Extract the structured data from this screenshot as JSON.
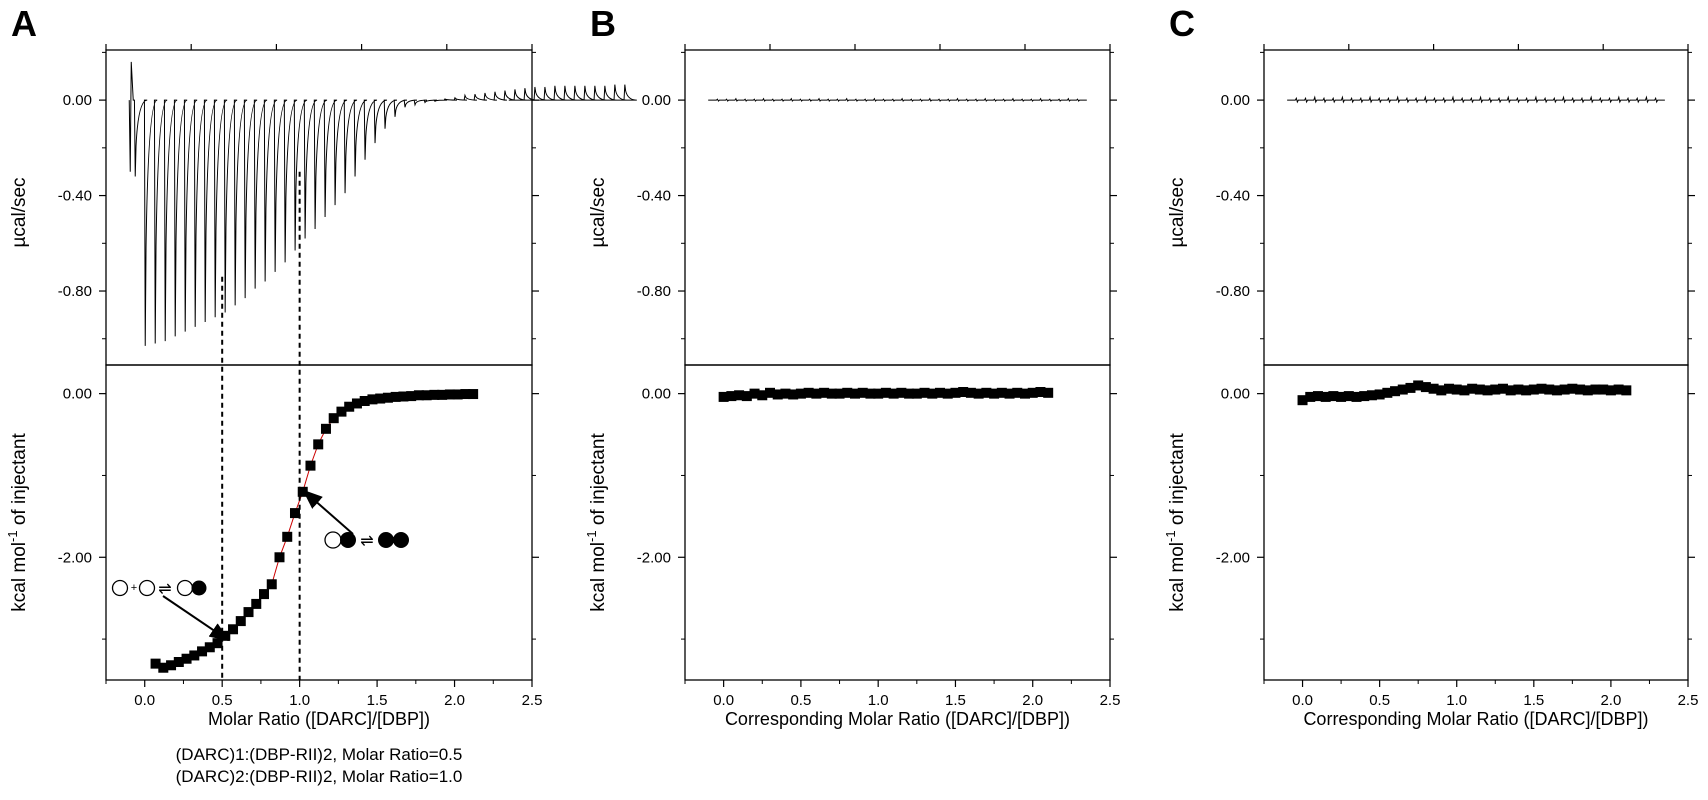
{
  "chart_data": [
    {
      "panel_label": "A",
      "type": "line",
      "top": {
        "ylabel": "µcal/sec",
        "ytick_labels": [
          "0.00",
          "-0.40",
          "-0.80"
        ],
        "ylim": [
          -1.11,
          0.21
        ],
        "series": [
          {
            "x_start": -0.1,
            "x_step": 0.0645,
            "count": 28,
            "peak_values": [
              -0.32,
              -1.03,
              -1.02,
              -1.01,
              -0.99,
              -0.97,
              -0.95,
              -0.93,
              -0.91,
              -0.89,
              -0.86,
              -0.83,
              -0.79,
              -0.76,
              -0.72,
              -0.68,
              -0.63,
              -0.58,
              -0.54,
              -0.49,
              -0.44,
              -0.39,
              -0.32,
              -0.25,
              -0.18,
              -0.12,
              -0.07,
              -0.03
            ],
            "tail_peak_values": [
              -0.02,
              -0.01,
              -0.005,
              0.005,
              0.01,
              0.02,
              0.025,
              0.03,
              0.035,
              0.04,
              0.045,
              0.05,
              0.055,
              0.055,
              0.06,
              0.06,
              0.06,
              0.06,
              0.06,
              0.06,
              0.065,
              0.065
            ],
            "initial_spike": 0.16,
            "x_end": 2.35
          }
        ]
      },
      "bottom": {
        "type": "scatter",
        "ylabel": "kcal mol-1 of injectant",
        "ylabel_parts": [
          "kcal mol",
          "-1",
          " of injectant"
        ],
        "ytick_labels": [
          "0.00",
          "-2.00"
        ],
        "ylim": [
          -3.5,
          0.35
        ],
        "xlabel": "Molar Ratio ([DARC]/[DBP])",
        "xtick_labels": [
          "0.0",
          "0.5",
          "1.0",
          "1.5",
          "2.0",
          "2.5"
        ],
        "xlim": [
          -0.25,
          2.5
        ],
        "series": [
          {
            "points": [
              [
                0.07,
                -3.3
              ],
              [
                0.12,
                -3.35
              ],
              [
                0.17,
                -3.32
              ],
              [
                0.22,
                -3.28
              ],
              [
                0.27,
                -3.24
              ],
              [
                0.32,
                -3.2
              ],
              [
                0.37,
                -3.15
              ],
              [
                0.42,
                -3.1
              ],
              [
                0.47,
                -3.05
              ],
              [
                0.52,
                -2.96
              ],
              [
                0.57,
                -2.88
              ],
              [
                0.62,
                -2.78
              ],
              [
                0.67,
                -2.67
              ],
              [
                0.72,
                -2.57
              ],
              [
                0.77,
                -2.45
              ],
              [
                0.82,
                -2.33
              ],
              [
                0.87,
                -2.0
              ],
              [
                0.92,
                -1.75
              ],
              [
                0.97,
                -1.46
              ],
              [
                1.02,
                -1.2
              ],
              [
                1.07,
                -0.88
              ],
              [
                1.12,
                -0.62
              ],
              [
                1.17,
                -0.43
              ],
              [
                1.22,
                -0.3
              ],
              [
                1.27,
                -0.22
              ],
              [
                1.32,
                -0.16
              ],
              [
                1.37,
                -0.12
              ],
              [
                1.42,
                -0.09
              ],
              [
                1.47,
                -0.07
              ],
              [
                1.52,
                -0.06
              ],
              [
                1.57,
                -0.05
              ],
              [
                1.62,
                -0.04
              ],
              [
                1.67,
                -0.035
              ],
              [
                1.72,
                -0.03
              ],
              [
                1.77,
                -0.02
              ],
              [
                1.82,
                -0.02
              ],
              [
                1.87,
                -0.015
              ],
              [
                1.92,
                -0.015
              ],
              [
                1.97,
                -0.01
              ],
              [
                2.02,
                -0.01
              ],
              [
                2.07,
                -0.005
              ],
              [
                2.12,
                -0.005
              ]
            ]
          }
        ],
        "fit_color": "#cc0000"
      },
      "reference_lines_x": [
        0.5,
        1.0
      ],
      "annotations": {
        "eq1": [
          "+",
          "⇌"
        ],
        "eq2": [
          "⇌"
        ]
      },
      "captions": [
        "(DARC)1:(DBP-RII)2, Molar Ratio=0.5",
        "(DARC)2:(DBP-RII)2, Molar Ratio=1.0"
      ]
    },
    {
      "panel_label": "B",
      "type": "line",
      "top": {
        "ylabel": "µcal/sec",
        "ytick_labels": [
          "0.00",
          "-0.40",
          "-0.80"
        ],
        "ylim": [
          -1.11,
          0.21
        ],
        "series": [
          {
            "flat": true,
            "noise": 0.004,
            "x_start": -0.1,
            "x_end": 2.35
          }
        ]
      },
      "bottom": {
        "type": "scatter",
        "ylabel": "kcal mol-1 of injectant",
        "ylabel_parts": [
          "kcal mol",
          "-1",
          " of injectant"
        ],
        "ytick_labels": [
          "0.00",
          "-2.00"
        ],
        "ylim": [
          -3.5,
          0.35
        ],
        "xlabel": "Corresponding Molar Ratio ([DARC]/[DBP])",
        "xtick_labels": [
          "0.0",
          "0.5",
          "1.0",
          "1.5",
          "2.0",
          "2.5"
        ],
        "xlim": [
          -0.25,
          2.5
        ],
        "series": [
          {
            "points": [
              [
                0.0,
                -0.04
              ],
              [
                0.05,
                -0.03
              ],
              [
                0.1,
                -0.02
              ],
              [
                0.15,
                -0.03
              ],
              [
                0.2,
                0.0
              ],
              [
                0.25,
                -0.02
              ],
              [
                0.3,
                0.01
              ],
              [
                0.35,
                -0.01
              ],
              [
                0.4,
                0.0
              ],
              [
                0.45,
                -0.01
              ],
              [
                0.5,
                0.0
              ],
              [
                0.55,
                0.01
              ],
              [
                0.6,
                0.0
              ],
              [
                0.65,
                0.01
              ],
              [
                0.7,
                0.0
              ],
              [
                0.75,
                0.0
              ],
              [
                0.8,
                0.01
              ],
              [
                0.85,
                0.0
              ],
              [
                0.9,
                0.01
              ],
              [
                0.95,
                0.0
              ],
              [
                1.0,
                0.0
              ],
              [
                1.05,
                0.01
              ],
              [
                1.1,
                0.0
              ],
              [
                1.15,
                0.01
              ],
              [
                1.2,
                0.0
              ],
              [
                1.25,
                0.0
              ],
              [
                1.3,
                0.01
              ],
              [
                1.35,
                0.0
              ],
              [
                1.4,
                0.01
              ],
              [
                1.45,
                0.0
              ],
              [
                1.5,
                0.01
              ],
              [
                1.55,
                0.02
              ],
              [
                1.6,
                0.01
              ],
              [
                1.65,
                0.0
              ],
              [
                1.7,
                0.01
              ],
              [
                1.75,
                0.0
              ],
              [
                1.8,
                0.01
              ],
              [
                1.85,
                0.0
              ],
              [
                1.9,
                0.01
              ],
              [
                1.95,
                0.0
              ],
              [
                2.0,
                0.01
              ],
              [
                2.05,
                0.02
              ],
              [
                2.1,
                0.01
              ]
            ]
          }
        ]
      }
    },
    {
      "panel_label": "C",
      "type": "line",
      "top": {
        "ylabel": "µcal/sec",
        "ytick_labels": [
          "0.00",
          "-0.40",
          "-0.80"
        ],
        "ylim": [
          -1.11,
          0.21
        ],
        "series": [
          {
            "flat": true,
            "noise": 0.008,
            "x_start": -0.1,
            "x_end": 2.35
          }
        ]
      },
      "bottom": {
        "type": "scatter",
        "ylabel": "kcal mol-1 of injectant",
        "ylabel_parts": [
          "kcal mol",
          "-1",
          " of injectant"
        ],
        "ytick_labels": [
          "0.00",
          "-2.00"
        ],
        "ylim": [
          -3.5,
          0.35
        ],
        "xlabel": "Corresponding Molar Ratio ([DARC]/[DBP])",
        "xtick_labels": [
          "0.0",
          "0.5",
          "1.0",
          "1.5",
          "2.0",
          "2.5"
        ],
        "xlim": [
          -0.25,
          2.5
        ],
        "series": [
          {
            "points": [
              [
                0.0,
                -0.08
              ],
              [
                0.05,
                -0.04
              ],
              [
                0.1,
                -0.03
              ],
              [
                0.15,
                -0.04
              ],
              [
                0.2,
                -0.03
              ],
              [
                0.25,
                -0.04
              ],
              [
                0.3,
                -0.03
              ],
              [
                0.35,
                -0.04
              ],
              [
                0.4,
                -0.03
              ],
              [
                0.45,
                -0.02
              ],
              [
                0.5,
                -0.01
              ],
              [
                0.55,
                0.01
              ],
              [
                0.6,
                0.03
              ],
              [
                0.65,
                0.05
              ],
              [
                0.7,
                0.07
              ],
              [
                0.75,
                0.1
              ],
              [
                0.8,
                0.08
              ],
              [
                0.85,
                0.06
              ],
              [
                0.9,
                0.04
              ],
              [
                0.95,
                0.06
              ],
              [
                1.0,
                0.05
              ],
              [
                1.05,
                0.04
              ],
              [
                1.1,
                0.06
              ],
              [
                1.15,
                0.05
              ],
              [
                1.2,
                0.04
              ],
              [
                1.25,
                0.05
              ],
              [
                1.3,
                0.06
              ],
              [
                1.35,
                0.04
              ],
              [
                1.4,
                0.05
              ],
              [
                1.45,
                0.04
              ],
              [
                1.5,
                0.05
              ],
              [
                1.55,
                0.06
              ],
              [
                1.6,
                0.05
              ],
              [
                1.65,
                0.04
              ],
              [
                1.7,
                0.05
              ],
              [
                1.75,
                0.06
              ],
              [
                1.8,
                0.05
              ],
              [
                1.85,
                0.04
              ],
              [
                1.9,
                0.05
              ],
              [
                1.95,
                0.05
              ],
              [
                2.0,
                0.04
              ],
              [
                2.05,
                0.05
              ],
              [
                2.1,
                0.04
              ]
            ]
          }
        ]
      }
    }
  ]
}
